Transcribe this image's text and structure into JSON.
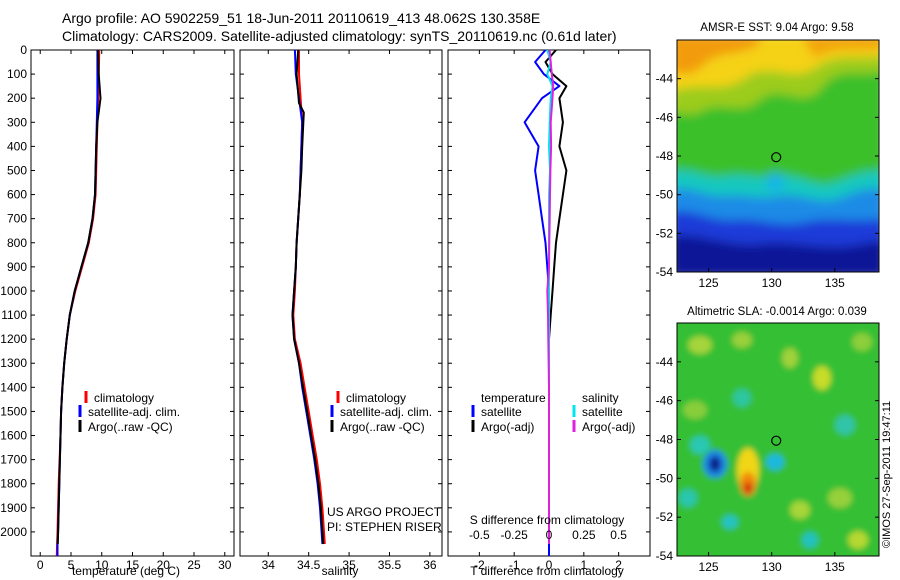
{
  "figure": {
    "title_line1": "Argo profile: AO 5902259_51 18-Jun-2011 20110619_413 48.062S 130.358E",
    "title_line2": "Climatology: CARS2009. Satellite-adjusted climatology: synTS_20110619.nc (0.61d later)",
    "credit": "©IMOS 27-Sep-2011 19:47:11",
    "project_line1": "US ARGO PROJECT",
    "project_line2": "PI: STEPHEN RISER"
  },
  "colors": {
    "climatology": "#ff0000",
    "satellite": "#0000ff",
    "argo": "#000000",
    "satellite_salinity": "#00e5ee",
    "argo_salinity": "#dd22dd"
  },
  "chart_data": [
    {
      "type": "line",
      "id": "temperature",
      "xlabel": "temperature (deg C)",
      "ylabel": "",
      "xlim": [
        -1.5,
        31.5
      ],
      "ylim": [
        2100,
        0
      ],
      "xticks": [
        0,
        5,
        10,
        15,
        20,
        25,
        30
      ],
      "yticks": [
        0,
        100,
        200,
        300,
        400,
        500,
        600,
        700,
        800,
        900,
        1000,
        1100,
        1200,
        1300,
        1400,
        1500,
        1600,
        1700,
        1800,
        1900,
        2000
      ],
      "legend": [
        "climatology",
        "satellite-adj. clim.",
        "Argo(..raw -QC)"
      ],
      "series": [
        {
          "name": "climatology",
          "x": [
            9.6,
            9.5,
            9.4,
            9.3,
            9.2,
            9.1,
            9.0,
            8.6,
            7.9,
            6.8,
            5.7,
            4.8,
            4.3,
            3.9,
            3.6,
            3.4,
            3.3,
            3.15,
            3.0,
            2.9,
            2.8,
            2.75,
            2.7
          ],
          "y": [
            0,
            100,
            200,
            300,
            400,
            500,
            600,
            700,
            800,
            900,
            1000,
            1100,
            1200,
            1300,
            1400,
            1500,
            1600,
            1700,
            1800,
            1900,
            2000,
            2050,
            2100
          ]
        },
        {
          "name": "satellite-adj. clim.",
          "x": [
            9.3,
            9.3,
            9.3,
            9.2,
            9.1,
            9.0,
            8.9,
            8.5,
            7.8,
            6.7,
            5.6,
            4.8,
            4.3,
            3.9,
            3.6,
            3.4,
            3.3,
            3.2,
            3.1,
            3.0,
            2.9,
            2.8,
            2.8
          ],
          "y": [
            0,
            100,
            200,
            300,
            400,
            500,
            600,
            700,
            800,
            900,
            1000,
            1100,
            1200,
            1300,
            1400,
            1500,
            1600,
            1700,
            1800,
            1900,
            2000,
            2050,
            2100
          ]
        },
        {
          "name": "Argo(..raw -QC)",
          "x": [
            9.4,
            9.5,
            9.8,
            9.3,
            9.1,
            9.0,
            8.9,
            8.5,
            7.8,
            6.7,
            5.6,
            4.8,
            4.3,
            3.9,
            3.6,
            3.4,
            3.3,
            3.2,
            3.1,
            3.0,
            2.9,
            2.85
          ],
          "y": [
            0,
            100,
            200,
            300,
            400,
            500,
            600,
            700,
            800,
            900,
            1000,
            1100,
            1200,
            1300,
            1400,
            1500,
            1600,
            1700,
            1800,
            1900,
            2000,
            2050
          ]
        }
      ]
    },
    {
      "type": "line",
      "id": "salinity",
      "xlabel": "salinity",
      "ylabel": "",
      "xlim": [
        33.65,
        36.15
      ],
      "ylim": [
        2100,
        0
      ],
      "xticks": [
        34,
        34.5,
        35,
        35.5,
        36
      ],
      "legend": [
        "climatology",
        "satellite-adj. clim.",
        "Argo(..raw -QC)"
      ],
      "series": [
        {
          "name": "climatology",
          "x": [
            34.38,
            34.38,
            34.4,
            34.42,
            34.41,
            34.4,
            34.39,
            34.37,
            34.35,
            34.34,
            34.33,
            34.31,
            34.33,
            34.4,
            34.45,
            34.5,
            34.55,
            34.6,
            34.64,
            34.67,
            34.69,
            34.7
          ],
          "y": [
            0,
            100,
            200,
            300,
            400,
            500,
            600,
            700,
            800,
            900,
            1000,
            1100,
            1200,
            1300,
            1400,
            1500,
            1600,
            1700,
            1800,
            1900,
            2000,
            2050
          ]
        },
        {
          "name": "satellite-adj. clim.",
          "x": [
            34.33,
            34.34,
            34.38,
            34.42,
            34.41,
            34.4,
            34.39,
            34.37,
            34.35,
            34.34,
            34.32,
            34.3,
            34.32,
            34.38,
            34.42,
            34.47,
            34.52,
            34.57,
            34.61,
            34.64,
            34.66,
            34.67
          ],
          "y": [
            0,
            100,
            200,
            300,
            400,
            500,
            600,
            700,
            800,
            900,
            1000,
            1100,
            1200,
            1300,
            1400,
            1500,
            1600,
            1700,
            1800,
            1900,
            2000,
            2050
          ]
        },
        {
          "name": "Argo(..raw -QC)",
          "x": [
            34.37,
            34.35,
            34.38,
            34.44,
            34.42,
            34.41,
            34.39,
            34.37,
            34.35,
            34.34,
            34.32,
            34.3,
            34.32,
            34.38,
            34.43,
            34.48,
            34.53,
            34.58,
            34.62,
            34.65,
            34.67,
            34.68
          ],
          "y": [
            0,
            100,
            220,
            260,
            400,
            500,
            600,
            700,
            800,
            900,
            1000,
            1100,
            1200,
            1300,
            1400,
            1500,
            1600,
            1700,
            1800,
            1900,
            2000,
            2050
          ]
        }
      ]
    },
    {
      "type": "line",
      "id": "difference",
      "xlabel": "T difference from climatology",
      "xlabel2": "S difference from climatology",
      "ylabel": "",
      "xlim": [
        -2.9,
        2.9
      ],
      "ylim": [
        2100,
        0
      ],
      "xticks": [
        -2,
        -1,
        0,
        1,
        2
      ],
      "xticks2": [
        -0.5,
        -0.25,
        0,
        0.25,
        0.5
      ],
      "legend": {
        "temperature_heading": "temperature",
        "salinity_heading": "salinity",
        "satellite": "satellite",
        "argo": "Argo(-adj)"
      },
      "series": [
        {
          "name": "temperature satellite",
          "x": [
            -0.1,
            -0.4,
            -0.15,
            0.3,
            -0.2,
            -0.7,
            -0.3,
            -0.4,
            -0.3,
            -0.2,
            -0.1,
            -0.05,
            0,
            0,
            0,
            0,
            0,
            0,
            0,
            0,
            0,
            0
          ],
          "y": [
            0,
            50,
            100,
            150,
            200,
            300,
            400,
            500,
            600,
            700,
            800,
            900,
            1000,
            1100,
            1200,
            1400,
            1600,
            1800,
            1900,
            2000,
            2050,
            2100
          ]
        },
        {
          "name": "temperature Argo",
          "x": [
            0.2,
            -0.1,
            0.1,
            0.5,
            0.3,
            0.4,
            0.3,
            0.5,
            0.4,
            0.3,
            0.2,
            0.15,
            0.1,
            0.05,
            0,
            0,
            0,
            0,
            0,
            0,
            0
          ],
          "y": [
            0,
            50,
            100,
            150,
            200,
            300,
            400,
            500,
            600,
            700,
            800,
            900,
            1000,
            1100,
            1200,
            1400,
            1600,
            1800,
            1900,
            2000,
            2050
          ]
        },
        {
          "name": "salinity satellite",
          "x": [
            -0.05,
            0.05,
            -0.05,
            0.1,
            0.05,
            0.02,
            0,
            0.03,
            0,
            0,
            0,
            0,
            0,
            0,
            0,
            0,
            0,
            0,
            0,
            0
          ],
          "y": [
            0,
            50,
            100,
            150,
            200,
            300,
            400,
            500,
            600,
            700,
            800,
            900,
            1000,
            1100,
            1200,
            1400,
            1600,
            1800,
            2000,
            2050
          ]
        },
        {
          "name": "salinity Argo",
          "x": [
            0.02,
            0.05,
            0.08,
            0.12,
            0.1,
            0.05,
            0.06,
            0.04,
            0.03,
            0.02,
            0.01,
            0,
            -0.05,
            -0.03,
            -0.02,
            0,
            0,
            0,
            0,
            0
          ],
          "y": [
            0,
            50,
            100,
            150,
            200,
            300,
            400,
            500,
            600,
            700,
            800,
            900,
            1000,
            1100,
            1200,
            1400,
            1600,
            1800,
            2000,
            2050
          ]
        }
      ]
    },
    {
      "type": "heatmap",
      "id": "sst_map",
      "title": "AMSR-E SST: 9.04 Argo: 9.58",
      "xlim": [
        122.5,
        138.5
      ],
      "ylim": [
        -54,
        -42
      ],
      "xticks": [
        125,
        130,
        135
      ],
      "yticks": [
        -44,
        -46,
        -48,
        -50,
        -52,
        -54
      ],
      "marker": {
        "lon": 130.358,
        "lat": -48.062
      }
    },
    {
      "type": "heatmap",
      "id": "sla_map",
      "title": "Altimetric SLA: -0.0014 Argo: 0.039",
      "xlim": [
        122.5,
        138.5
      ],
      "ylim": [
        -54,
        -42
      ],
      "xticks": [
        125,
        130,
        135
      ],
      "yticks": [
        -44,
        -46,
        -48,
        -50,
        -52,
        -54
      ],
      "marker": {
        "lon": 130.358,
        "lat": -48.062
      }
    }
  ]
}
